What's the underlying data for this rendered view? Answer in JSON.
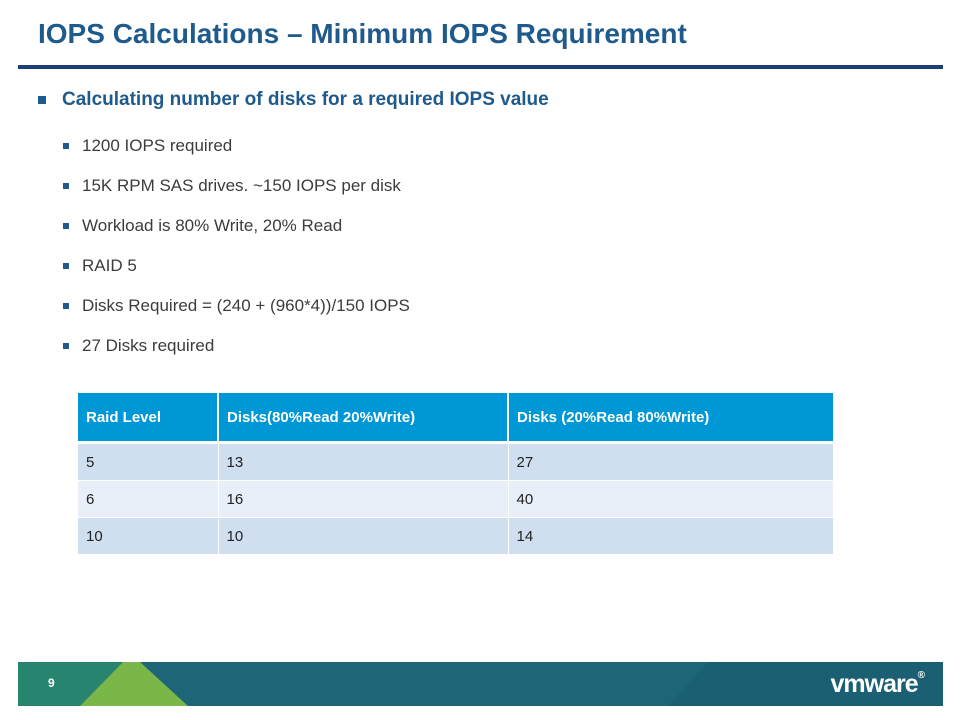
{
  "slide": {
    "title": "IOPS Calculations – Minimum IOPS Requirement",
    "main_bullet": "Calculating number of disks for a required IOPS value",
    "sub_bullets": [
      "1200 IOPS required",
      "15K RPM SAS drives. ~150 IOPS per disk",
      "Workload is 80% Write, 20% Read",
      "RAID 5",
      "Disks Required = (240 + (960*4))/150 IOPS",
      "27 Disks required"
    ]
  },
  "table": {
    "headers": [
      "Raid Level",
      "Disks(80%Read 20%Write)",
      "Disks (20%Read 80%Write)"
    ],
    "rows": [
      [
        "5",
        "13",
        "27"
      ],
      [
        "6",
        "16",
        "40"
      ],
      [
        "10",
        "10",
        "14"
      ]
    ]
  },
  "footer": {
    "page_number": "9",
    "logo_text": "vmware",
    "logo_mark": "®"
  },
  "colors": {
    "title": "#1f5a8c",
    "rule": "#1d3f73",
    "table_header": "#0097d6",
    "row_odd": "#cfdff0",
    "row_even": "#e8eff8",
    "footer_teal": "#1e6578",
    "footer_green": "#7ab648"
  }
}
